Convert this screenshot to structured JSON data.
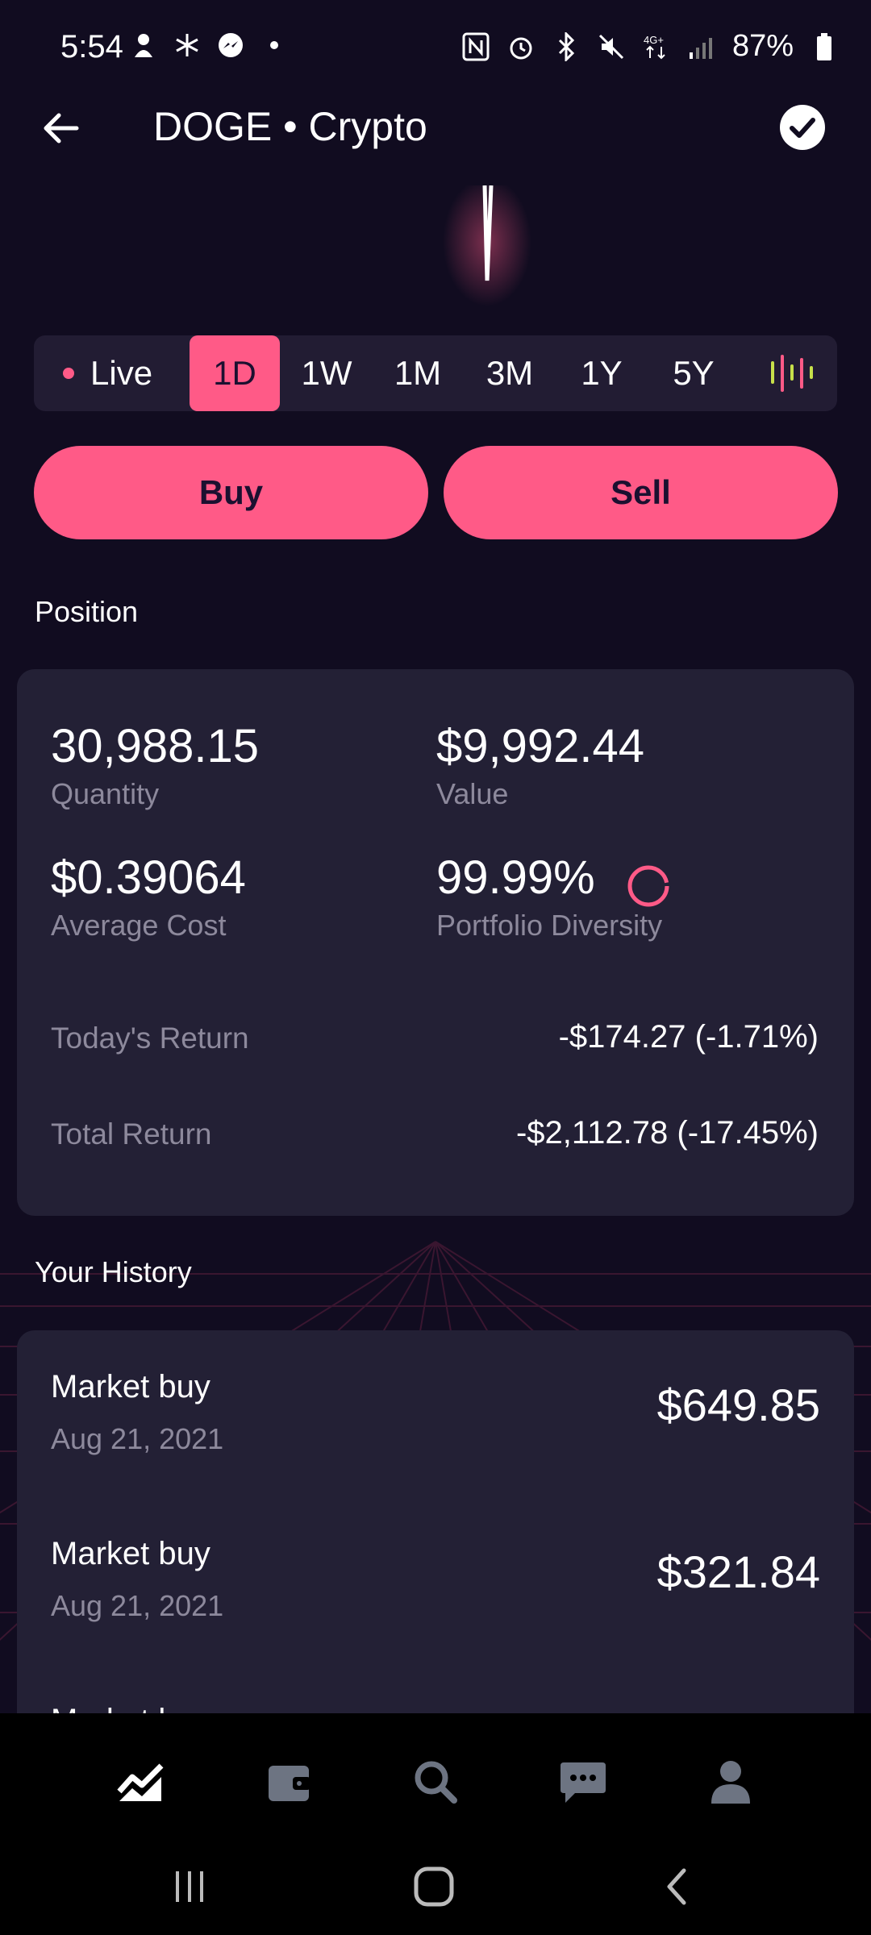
{
  "status_bar": {
    "time": "5:54",
    "battery": "87%"
  },
  "header": {
    "title": "DOGE • Crypto"
  },
  "range": {
    "live_label": "Live",
    "tabs": [
      "1D",
      "1W",
      "1M",
      "3M",
      "1Y",
      "5Y"
    ],
    "active": "1D"
  },
  "actions": {
    "buy": "Buy",
    "sell": "Sell"
  },
  "position": {
    "section_title": "Position",
    "quantity_value": "30,988.15",
    "quantity_label": "Quantity",
    "value_value": "$9,992.44",
    "value_label": "Value",
    "avg_cost_value": "$0.39064",
    "avg_cost_label": "Average Cost",
    "diversity_value": "99.99%",
    "diversity_label": "Portfolio Diversity",
    "todays_return_label": "Today's Return",
    "todays_return_value": "-$174.27 (-1.71%)",
    "total_return_label": "Total Return",
    "total_return_value": "-$2,112.78 (-17.45%)"
  },
  "history": {
    "section_title": "Your History",
    "items": [
      {
        "title": "Market buy",
        "date": "Aug 21, 2021",
        "amount": "$649.85"
      },
      {
        "title": "Market buy",
        "date": "Aug 21, 2021",
        "amount": "$321.84"
      },
      {
        "title": "Market buy",
        "date": "",
        "amount": ""
      }
    ]
  },
  "nav": {
    "items": [
      "chart-icon",
      "wallet-icon",
      "search-icon",
      "chat-icon",
      "profile-icon"
    ],
    "active": "chart-icon"
  },
  "colors": {
    "accent": "#ff5a87",
    "background": "#110c20",
    "card": "#232035",
    "muted_text": "#8d899c"
  }
}
